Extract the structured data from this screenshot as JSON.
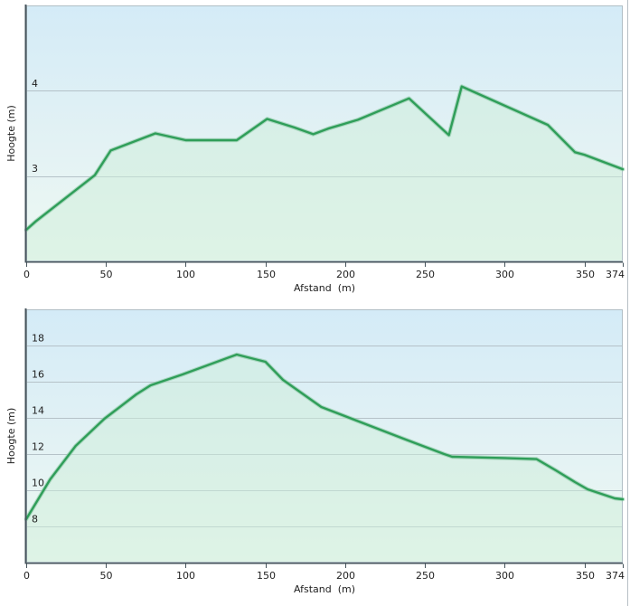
{
  "page": {
    "background": "#ffffff",
    "right_border_color": "#b7c0c5"
  },
  "chart_data": [
    {
      "type": "area",
      "title": "",
      "xlabel": "Afstand  (m)",
      "ylabel": "Hoogte (m)",
      "xlim": [
        0,
        374
      ],
      "ylim": [
        2,
        5
      ],
      "grid": true,
      "legend_position": "none",
      "x_ticks": [
        0,
        50,
        100,
        150,
        200,
        250,
        300,
        350,
        374
      ],
      "x_tick_labels": [
        "0",
        "50",
        "100",
        "150",
        "200",
        "250",
        "300",
        "350",
        "374"
      ],
      "y_ticks": [
        3,
        4
      ],
      "y_tick_labels": [
        "3",
        "4"
      ],
      "x": [
        0,
        6,
        43,
        53,
        60,
        81,
        100,
        132,
        151,
        168,
        180,
        190,
        208,
        240,
        265,
        273,
        327,
        344,
        350,
        374
      ],
      "y": [
        2.37,
        2.47,
        3.01,
        3.3,
        3.35,
        3.5,
        3.42,
        3.42,
        3.67,
        3.57,
        3.49,
        3.56,
        3.66,
        3.91,
        3.48,
        4.05,
        3.6,
        3.28,
        3.25,
        3.08
      ]
    },
    {
      "type": "area",
      "title": "",
      "xlabel": "Afstand  (m)",
      "ylabel": "Hoogte (m)",
      "xlim": [
        0,
        374
      ],
      "ylim": [
        6,
        20
      ],
      "grid": true,
      "legend_position": "none",
      "x_ticks": [
        0,
        50,
        100,
        150,
        200,
        250,
        300,
        350,
        374
      ],
      "x_tick_labels": [
        "0",
        "50",
        "100",
        "150",
        "200",
        "250",
        "300",
        "350",
        "374"
      ],
      "y_ticks": [
        8,
        10,
        12,
        14,
        16,
        18
      ],
      "y_tick_labels": [
        "8",
        "10",
        "12",
        "14",
        "16",
        "18"
      ],
      "x": [
        0,
        15,
        31,
        49,
        69,
        78,
        98,
        132,
        150,
        161,
        185,
        210,
        238,
        262,
        267,
        300,
        320,
        332,
        344,
        352,
        369,
        374
      ],
      "y": [
        8.4,
        10.6,
        12.45,
        13.95,
        15.3,
        15.8,
        16.4,
        17.5,
        17.1,
        16.1,
        14.6,
        13.75,
        12.8,
        12.0,
        11.85,
        11.78,
        11.72,
        11.1,
        10.45,
        10.05,
        9.55,
        9.5
      ]
    }
  ],
  "style": {
    "line_color": "#2f9e59",
    "line_halo_color": "#90cba9",
    "area_fill_color": "#cdeeda",
    "plot_bg_top": "#d4ebf7",
    "plot_bg_mid": "#e3f2f4",
    "plot_bg_bottom": "#eef9f2",
    "grid_color": "#b5c2c8",
    "frame_color": "#b0bec5",
    "axis_color": "#46545c",
    "text_color": "#1e1e1e"
  }
}
